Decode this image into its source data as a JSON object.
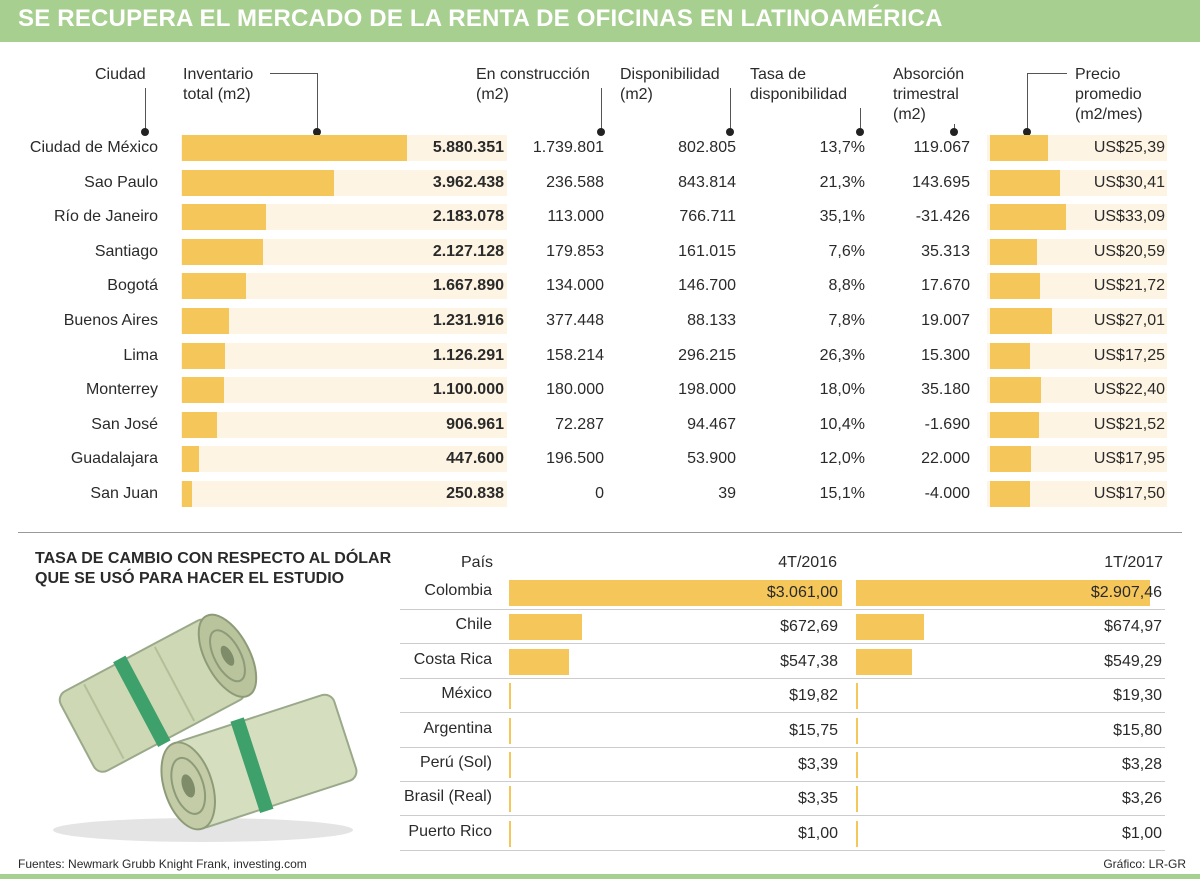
{
  "title": "SE RECUPERA EL MERCADO DE LA RENTA DE OFICINAS EN LATINOAMÉRICA",
  "colors": {
    "band": "#a7cf8f",
    "bar": "#f5c65a",
    "row_bg": "#fdf4e3"
  },
  "chart_data": [
    {
      "type": "table",
      "title": "SE RECUPERA EL MERCADO DE LA RENTA DE OFICINAS EN LATINOAMÉRICA",
      "headers": {
        "city": "Ciudad",
        "inventory": [
          "Inventario",
          "total (m2)"
        ],
        "construction": [
          "En construcción",
          "(m2)"
        ],
        "availability": [
          "Disponibilidad",
          "(m2)"
        ],
        "rate": [
          "Tasa de",
          "disponibilidad"
        ],
        "absorption": [
          "Absorción",
          "trimestral",
          "(m2)"
        ],
        "price": [
          "Precio",
          "promedio",
          "(m2/mes)"
        ]
      },
      "rows": [
        {
          "city": "Ciudad de México",
          "inventory": "5.880.351",
          "inventory_value": 5880351,
          "construction": "1.739.801",
          "availability": "802.805",
          "rate": "13,7%",
          "absorption": "119.067",
          "price": "US$25,39",
          "price_value": 25.39
        },
        {
          "city": "Sao Paulo",
          "inventory": "3.962.438",
          "inventory_value": 3962438,
          "construction": "236.588",
          "availability": "843.814",
          "rate": "21,3%",
          "absorption": "143.695",
          "price": "US$30,41",
          "price_value": 30.41
        },
        {
          "city": "Río de Janeiro",
          "inventory": "2.183.078",
          "inventory_value": 2183078,
          "construction": "113.000",
          "availability": "766.711",
          "rate": "35,1%",
          "absorption": "-31.426",
          "price": "US$33,09",
          "price_value": 33.09
        },
        {
          "city": "Santiago",
          "inventory": "2.127.128",
          "inventory_value": 2127128,
          "construction": "179.853",
          "availability": "161.015",
          "rate": "7,6%",
          "absorption": "35.313",
          "price": "US$20,59",
          "price_value": 20.59
        },
        {
          "city": "Bogotá",
          "inventory": "1.667.890",
          "inventory_value": 1667890,
          "construction": "134.000",
          "availability": "146.700",
          "rate": "8,8%",
          "absorption": "17.670",
          "price": "US$21,72",
          "price_value": 21.72
        },
        {
          "city": "Buenos Aires",
          "inventory": "1.231.916",
          "inventory_value": 1231916,
          "construction": "377.448",
          "availability": "88.133",
          "rate": "7,8%",
          "absorption": "19.007",
          "price": "US$27,01",
          "price_value": 27.01
        },
        {
          "city": "Lima",
          "inventory": "1.126.291",
          "inventory_value": 1126291,
          "construction": "158.214",
          "availability": "296.215",
          "rate": "26,3%",
          "absorption": "15.300",
          "price": "US$17,25",
          "price_value": 17.25
        },
        {
          "city": "Monterrey",
          "inventory": "1.100.000",
          "inventory_value": 1100000,
          "construction": "180.000",
          "availability": "198.000",
          "rate": "18,0%",
          "absorption": "35.180",
          "price": "US$22,40",
          "price_value": 22.4
        },
        {
          "city": "San José",
          "inventory": "906.961",
          "inventory_value": 906961,
          "construction": "72.287",
          "availability": "94.467",
          "rate": "10,4%",
          "absorption": "-1.690",
          "price": "US$21,52",
          "price_value": 21.52
        },
        {
          "city": "Guadalajara",
          "inventory": "447.600",
          "inventory_value": 447600,
          "construction": "196.500",
          "availability": "53.900",
          "rate": "12,0%",
          "absorption": "22.000",
          "price": "US$17,95",
          "price_value": 17.95
        },
        {
          "city": "San Juan",
          "inventory": "250.838",
          "inventory_value": 250838,
          "construction": "0",
          "availability": "39",
          "rate": "15,1%",
          "absorption": "-4.000",
          "price": "US$17,50",
          "price_value": 17.5
        }
      ]
    },
    {
      "type": "bar",
      "title": "TASA DE CAMBIO CON RESPECTO AL DÓLAR QUE SE USÓ PARA HACER EL ESTUDIO",
      "category_label": "País",
      "categories": [
        "Colombia",
        "Chile",
        "Costa Rica",
        "México",
        "Argentina",
        "Perú (Sol)",
        "Brasil (Real)",
        "Puerto Rico"
      ],
      "series": [
        {
          "name": "4T/2016",
          "values": [
            3061.0,
            672.69,
            547.38,
            19.82,
            15.75,
            3.39,
            3.35,
            1.0
          ],
          "labels": [
            "$3.061,00",
            "$672,69",
            "$547,38",
            "$19,82",
            "$15,75",
            "$3,39",
            "$3,35",
            "$1,00"
          ]
        },
        {
          "name": "1T/2017",
          "values": [
            2907.46,
            674.97,
            549.29,
            19.3,
            15.8,
            3.28,
            3.26,
            1.0
          ],
          "labels": [
            "$2.907,46",
            "$674,97",
            "$549,29",
            "$19,30",
            "$15,80",
            "$3,28",
            "$3,26",
            "$1,00"
          ]
        }
      ]
    }
  ],
  "fx_title": [
    "TASA DE CAMBIO CON RESPECTO AL DÓLAR",
    "QUE SE USÓ PARA HACER EL ESTUDIO"
  ],
  "footer": {
    "source": "Fuentes: Newmark Grubb Knight Frank, investing.com",
    "credit": "Gráfico: LR-GR"
  }
}
